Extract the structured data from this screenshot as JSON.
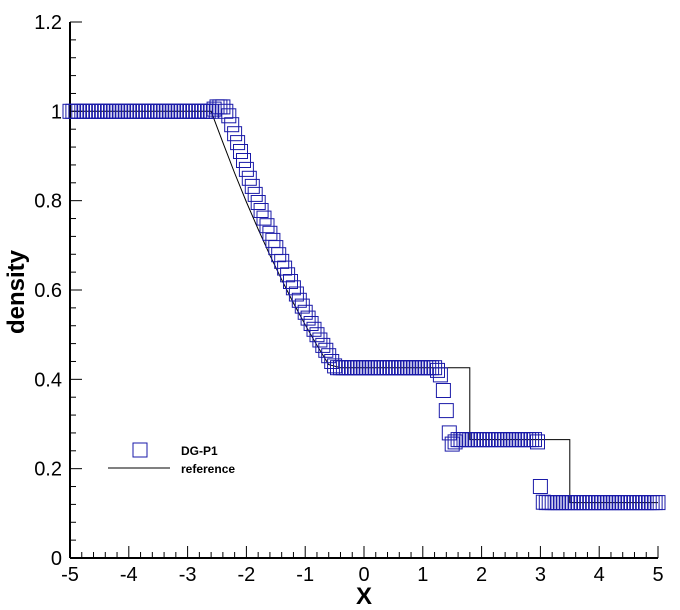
{
  "chart_data": {
    "type": "scatter",
    "xlabel": "X",
    "ylabel": "density",
    "xlim": [
      -5,
      5
    ],
    "ylim": [
      0,
      1.2
    ],
    "x_ticks": [
      "-5",
      "-4",
      "-3",
      "-2",
      "-1",
      "0",
      "1",
      "2",
      "3",
      "4",
      "5"
    ],
    "y_ticks": [
      "0",
      "0.2",
      "0.4",
      "0.6",
      "0.8",
      "1",
      "1.2"
    ],
    "grid": false,
    "legend_position": "lower-left",
    "series": [
      {
        "name": "DG-P1",
        "marker": "open-square",
        "color": "#1a1aa8",
        "x_step": 0.05,
        "x_start": -5,
        "values": [
          1,
          1,
          1,
          1,
          1,
          1,
          1,
          1,
          1,
          1,
          1,
          1,
          1,
          1,
          1,
          1,
          1,
          1,
          1,
          1,
          1,
          1,
          1,
          1,
          1,
          1,
          1,
          1,
          1,
          1,
          1,
          1,
          1,
          1,
          1,
          1,
          1,
          1,
          1,
          1,
          1,
          1,
          1,
          1,
          1,
          1,
          1,
          1,
          1,
          1.005,
          1.01,
          1.01,
          1.01,
          1,
          0.99,
          0.97,
          0.95,
          0.93,
          0.91,
          0.89,
          0.87,
          0.85,
          0.832,
          0.814,
          0.796,
          0.778,
          0.761,
          0.744,
          0.727,
          0.711,
          0.695,
          0.679,
          0.664,
          0.649,
          0.634,
          0.619,
          0.605,
          0.591,
          0.577,
          0.564,
          0.55,
          0.537,
          0.525,
          0.512,
          0.5,
          0.488,
          0.476,
          0.465,
          0.453,
          0.44,
          0.43,
          0.426,
          0.426,
          0.426,
          0.426,
          0.426,
          0.426,
          0.426,
          0.426,
          0.426,
          0.426,
          0.426,
          0.426,
          0.426,
          0.426,
          0.426,
          0.426,
          0.426,
          0.426,
          0.426,
          0.426,
          0.426,
          0.426,
          0.426,
          0.426,
          0.426,
          0.426,
          0.426,
          0.426,
          0.426,
          0.426,
          0.426,
          0.426,
          0.426,
          0.426,
          0.42,
          0.41,
          0.375,
          0.33,
          0.28,
          0.255,
          0.26,
          0.265,
          0.265,
          0.265,
          0.265,
          0.265,
          0.265,
          0.265,
          0.265,
          0.265,
          0.265,
          0.265,
          0.265,
          0.265,
          0.265,
          0.265,
          0.265,
          0.265,
          0.265,
          0.265,
          0.265,
          0.265,
          0.265,
          0.265,
          0.265,
          0.265,
          0.265,
          0.265,
          0.26,
          0.16,
          0.125,
          0.124,
          0.124,
          0.124,
          0.124,
          0.124,
          0.124,
          0.124,
          0.124,
          0.124,
          0.124,
          0.124,
          0.124,
          0.124,
          0.124,
          0.124,
          0.124,
          0.124,
          0.124,
          0.124,
          0.124,
          0.124,
          0.124,
          0.124,
          0.124,
          0.124,
          0.124,
          0.124,
          0.124,
          0.124,
          0.124,
          0.124,
          0.124,
          0.124,
          0.124,
          0.124,
          0.124,
          0.124,
          0.124,
          0.124
        ]
      },
      {
        "name": "reference",
        "marker": "line",
        "color": "#000000",
        "x": [
          -5,
          -2.6,
          -2.4,
          -2.2,
          -2.0,
          -1.8,
          -1.6,
          -1.4,
          -1.2,
          -1.0,
          -0.8,
          -0.6,
          -0.4,
          -0.2,
          -0.05,
          0.0,
          1.8,
          1.8,
          3.5,
          3.5,
          5.0
        ],
        "y": [
          1.0,
          1.0,
          0.93,
          0.862,
          0.797,
          0.736,
          0.678,
          0.623,
          0.571,
          0.522,
          0.476,
          0.433,
          0.426,
          0.426,
          0.426,
          0.426,
          0.426,
          0.265,
          0.265,
          0.124,
          0.124
        ]
      }
    ]
  }
}
